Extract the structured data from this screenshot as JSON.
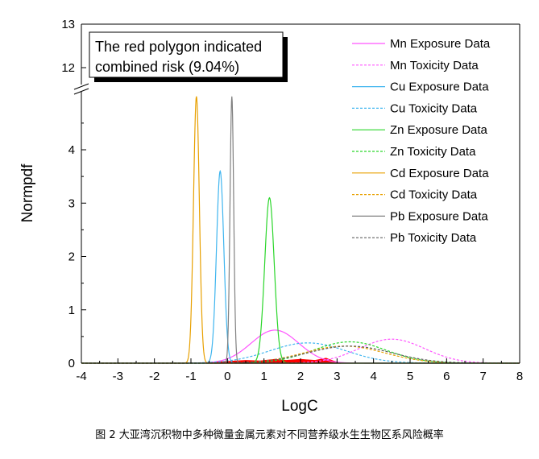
{
  "chart_data": {
    "type": "line",
    "xlabel": "LogC",
    "ylabel": "Normpdf",
    "xlim": [
      -4,
      8
    ],
    "x_ticks": [
      "-4",
      "-3",
      "-2",
      "-1",
      "0",
      "1",
      "2",
      "3",
      "4",
      "5",
      "6",
      "7",
      "8"
    ],
    "y_ticks_lower": [
      "0",
      "1",
      "2",
      "3",
      "4"
    ],
    "y_ticks_upper": [
      "12",
      "13"
    ],
    "axis_break": {
      "lower_ylim": [
        0,
        5
      ],
      "upper_ylim": [
        11.5,
        13
      ]
    },
    "legend_position": "top-right",
    "annotation": {
      "line1": "The red polygon indicated",
      "line2": "combined risk (9.04%)"
    },
    "series": [
      {
        "name": "Mn Exposure Data",
        "color": "#ff55ff",
        "style": "solid",
        "mean": 1.3,
        "sd": 0.65,
        "peak": 0.62
      },
      {
        "name": "Mn Toxicity Data",
        "color": "#ff55ff",
        "style": "dashed",
        "mean": 4.5,
        "sd": 0.9,
        "peak": 0.45
      },
      {
        "name": "Cu Exposure Data",
        "color": "#3fb5ef",
        "style": "solid",
        "mean": -0.2,
        "sd": 0.1,
        "peak": 3.6
      },
      {
        "name": "Cu Toxicity Data",
        "color": "#3fb5ef",
        "style": "dashed",
        "mean": 2.2,
        "sd": 1.05,
        "peak": 0.38
      },
      {
        "name": "Zn Exposure Data",
        "color": "#2ad62a",
        "style": "solid",
        "mean": 1.15,
        "sd": 0.13,
        "peak": 3.1
      },
      {
        "name": "Zn Toxicity Data",
        "color": "#2ad62a",
        "style": "dashed",
        "mean": 3.35,
        "sd": 1.0,
        "peak": 0.4
      },
      {
        "name": "Cd Exposure Data",
        "color": "#e8a000",
        "style": "solid",
        "mean": -0.85,
        "sd": 0.08,
        "peak": 5.0
      },
      {
        "name": "Cd Toxicity Data",
        "color": "#e8a000",
        "style": "dashed",
        "mean": 3.2,
        "sd": 1.1,
        "peak": 0.32
      },
      {
        "name": "Pb Exposure Data",
        "color": "#808080",
        "style": "solid",
        "mean": 0.12,
        "sd": 0.05,
        "peak": 5.0
      },
      {
        "name": "Pb Toxicity Data",
        "color": "#606060",
        "style": "dashed",
        "mean": 3.35,
        "sd": 1.15,
        "peak": 0.32
      }
    ],
    "risk_polygon_color": "#ff0000"
  },
  "caption": "图 2 大亚湾沉积物中多种微量金属元素对不同营养级水生生物区系风险概率"
}
